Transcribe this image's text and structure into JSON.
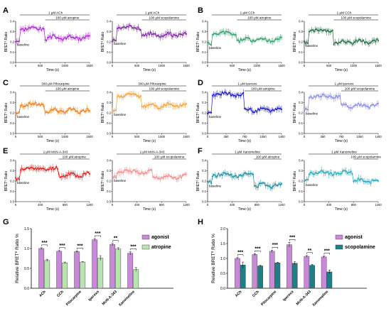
{
  "panel_letters": [
    "A",
    "B",
    "C",
    "D",
    "E",
    "F",
    "G",
    "H"
  ],
  "trace_panels": [
    {
      "top": "1 μM ACh",
      "bottom": "100 μM atropine",
      "xlabel": "Time (s)",
      "ylabel": "BRET⁰ Ratio",
      "baseline": "baseline",
      "color": "#b020d8",
      "color2": "#b020d8",
      "xmax": 1500,
      "xticks": [
        0,
        500,
        1000,
        1500
      ],
      "switch": 600,
      "base": 0.21,
      "agon": 0.33,
      "post": 0.24
    },
    {
      "top": "1 μM ACh",
      "bottom": "100 μM scopolamine",
      "xlabel": "Time (s)",
      "ylabel": "BRET⁰ Ratio",
      "baseline": "baseline",
      "color": "#7a1fa2",
      "color2": "#7a1fa2",
      "xmax": 1500,
      "xticks": [
        0,
        500,
        1000,
        1500
      ],
      "switch": 600,
      "base": 0.22,
      "agon": 0.34,
      "post": 0.27
    },
    {
      "top": "1 μM CCh",
      "bottom": "100 μM atropine",
      "xlabel": "Time (s)",
      "ylabel": "BRET⁰ Ratio",
      "baseline": "baseline",
      "color": "#2a9d68",
      "color2": "#2a9d68",
      "xmax": 1500,
      "xticks": [
        0,
        500,
        1000,
        1500
      ],
      "switch": 600,
      "base": 0.18,
      "agon": 0.28,
      "post": 0.22
    },
    {
      "top": "1 μM CCh",
      "bottom": "100 μM scopolamine",
      "xlabel": "Time (s)",
      "ylabel": "BRET⁰ Ratio",
      "baseline": "baseline",
      "color": "#1f6b3f",
      "color2": "#1f6b3f",
      "xmax": 1500,
      "xticks": [
        0,
        500,
        1000,
        1500
      ],
      "switch": 600,
      "base": 0.2,
      "agon": 0.31,
      "post": 0.2
    },
    {
      "top": "300 μM Pilocarpine",
      "bottom": "100 μM atropine",
      "xlabel": "Time (s)",
      "ylabel": "BRET⁰ Ratio",
      "baseline": "baseline",
      "color": "#f07a10",
      "color2": "#f07a10",
      "xmax": 1500,
      "xticks": [
        0,
        500,
        1000,
        1500
      ],
      "switch": 600,
      "base": 0.2,
      "agon": 0.28,
      "post": 0.22
    },
    {
      "top": "300 μM Pilocarpine",
      "bottom": "100 μM scopolamine",
      "xlabel": "Time (s)",
      "ylabel": "BRET⁰ Ratio",
      "baseline": "baseline",
      "color": "#f5a13a",
      "color2": "#f5a13a",
      "xmax": 1500,
      "xticks": [
        0,
        500,
        1000,
        1500
      ],
      "switch": 600,
      "base": 0.22,
      "agon": 0.37,
      "post": 0.27
    },
    {
      "top": "1 μM Iperoxo",
      "bottom": "100 μM atropine",
      "xlabel": "Time (s)",
      "ylabel": "BRET⁰ Ratio",
      "baseline": "baseline",
      "color": "#1414c8",
      "color2": "#1414c8",
      "xmax": 1400,
      "xticks": [
        0,
        350,
        700,
        1050,
        1400
      ],
      "switch": 700,
      "base": 0.2,
      "agon": 0.38,
      "post": 0.23
    },
    {
      "top": "1 μM Iperoxo",
      "bottom": "100 μM scopolamine",
      "xlabel": "Time (s)",
      "ylabel": "BRET⁰ Ratio",
      "baseline": "baseline",
      "color": "#8a8aee",
      "color2": "#8a8aee",
      "xmax": 1400,
      "xticks": [
        0,
        350,
        700,
        1050,
        1400
      ],
      "switch": 700,
      "base": 0.23,
      "agon": 0.36,
      "post": 0.27
    },
    {
      "top": "1 μM McN-A-343",
      "bottom": "100 μM atropine",
      "xlabel": "Time (s)",
      "ylabel": "BRET⁰ Ratio",
      "baseline": "baseline",
      "color": "#e01818",
      "color2": "#e01818",
      "xmax": 1200,
      "xticks": [
        0,
        400,
        800,
        1200
      ],
      "switch": 700,
      "base": 0.22,
      "agon": 0.32,
      "post": 0.26
    },
    {
      "top": "1 μM McN-A-343",
      "bottom": "100 μM scopolamine",
      "xlabel": "Time (s)",
      "ylabel": "BRET⁰ Ratio",
      "baseline": "baseline",
      "color": "#f08a8a",
      "color2": "#f08a8a",
      "xmax": 1200,
      "xticks": [
        0,
        400,
        800,
        1200
      ],
      "switch": 650,
      "base": 0.24,
      "agon": 0.29,
      "post": 0.24
    },
    {
      "top": "1 μM Xanomeline",
      "bottom": "100 μM atropine",
      "xlabel": "Time (s)",
      "ylabel": "BRET⁰ Ratio",
      "baseline": "baseline",
      "color": "#1a8ca0",
      "color2": "#1a8ca0",
      "xmax": 1200,
      "xticks": [
        0,
        400,
        800,
        1200
      ],
      "switch": 750,
      "base": 0.19,
      "agon": 0.26,
      "post": 0.16
    },
    {
      "top": "1 μM Xanomeline",
      "bottom": "100 μM scopolamine",
      "xlabel": "Time (s)",
      "ylabel": "BRET⁰ Ratio",
      "baseline": "baseline",
      "color": "#25a8b8",
      "color2": "#25a8b8",
      "xmax": 1200,
      "xticks": [
        0,
        400,
        800,
        1200
      ],
      "switch": 800,
      "base": 0.2,
      "agon": 0.28,
      "post": 0.2
    }
  ],
  "trace_yticks": [
    "0.0",
    "0.1",
    "0.2",
    "0.3",
    "0.4"
  ],
  "chart_data": [
    {
      "type": "bar",
      "ylabel": "Relative BRET⁰ Ratio %",
      "ylim": [
        0.0,
        1.5
      ],
      "yticks": [
        "0.0",
        "0.5",
        "1.0",
        "1.5"
      ],
      "categories": [
        "ACh",
        "CCh",
        "Pilocarpine",
        "Iperoxo",
        "McN-A-343",
        "Xanomeline"
      ],
      "series": [
        {
          "name": "agonist",
          "color": "#c88ad8",
          "values": [
            1.0,
            0.93,
            0.92,
            1.22,
            1.1,
            0.88
          ],
          "errors": [
            0.02,
            0.02,
            0.02,
            0.03,
            0.03,
            0.04
          ]
        },
        {
          "name": "atropine",
          "color": "#b8e4b0",
          "values": [
            0.7,
            0.64,
            0.66,
            0.76,
            0.99,
            0.47
          ],
          "errors": [
            0.03,
            0.02,
            0.01,
            0.06,
            0.03,
            0.05
          ]
        }
      ],
      "significance": [
        "***",
        "***",
        "***",
        "***",
        "**",
        "***"
      ],
      "legend": "top-right"
    },
    {
      "type": "bar",
      "ylabel": "Relative BRET⁰ Ratio %",
      "ylim": [
        0.0,
        2.0
      ],
      "yticks": [
        "0.0",
        "0.5",
        "1.0",
        "1.5",
        "2.0"
      ],
      "categories": [
        "ACh",
        "CCh",
        "Pilocarpine",
        "Iperoxo",
        "McN-A-343",
        "Xanomeline"
      ],
      "series": [
        {
          "name": "agonist",
          "color": "#c88ad8",
          "values": [
            1.0,
            1.13,
            1.24,
            1.46,
            1.07,
            1.05
          ],
          "errors": [
            0.03,
            0.03,
            0.04,
            0.08,
            0.03,
            0.03
          ]
        },
        {
          "name": "scopolamine",
          "color": "#1f7f86",
          "values": [
            0.78,
            0.75,
            0.85,
            0.84,
            0.77,
            0.55
          ],
          "errors": [
            0.1,
            0.02,
            0.02,
            0.05,
            0.03,
            0.06
          ]
        }
      ],
      "significance": [
        "***",
        "***",
        "***",
        "***",
        "**",
        "***"
      ],
      "legend": "top-right"
    }
  ]
}
